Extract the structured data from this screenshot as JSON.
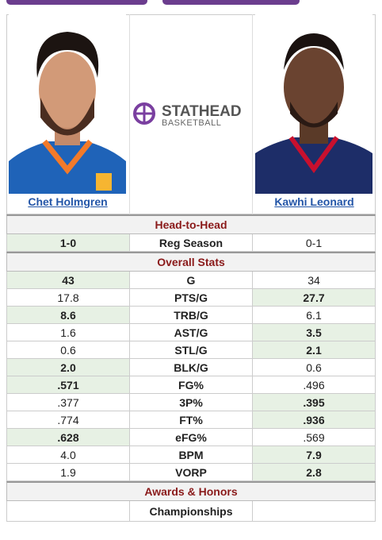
{
  "header": {
    "players": [
      {
        "name": "Chet Holmgren"
      },
      {
        "name": "Kawhi Leonard"
      }
    ],
    "logo": {
      "brand": "STATHEAD",
      "sub": "BASKETBALL"
    }
  },
  "sections": [
    {
      "title": "Head-to-Head",
      "rows": [
        {
          "left": "1-0",
          "label": "Reg Season",
          "right": "0-1",
          "leader": "left"
        }
      ]
    },
    {
      "title": "Overall Stats",
      "rows": [
        {
          "left": "43",
          "label": "G",
          "right": "34",
          "leader": "left"
        },
        {
          "left": "17.8",
          "label": "PTS/G",
          "right": "27.7",
          "leader": "right"
        },
        {
          "left": "8.6",
          "label": "TRB/G",
          "right": "6.1",
          "leader": "left"
        },
        {
          "left": "1.6",
          "label": "AST/G",
          "right": "3.5",
          "leader": "right"
        },
        {
          "left": "0.6",
          "label": "STL/G",
          "right": "2.1",
          "leader": "right"
        },
        {
          "left": "2.0",
          "label": "BLK/G",
          "right": "0.6",
          "leader": "left"
        },
        {
          "left": ".571",
          "label": "FG%",
          "right": ".496",
          "leader": "left"
        },
        {
          "left": ".377",
          "label": "3P%",
          "right": ".395",
          "leader": "right"
        },
        {
          "left": ".774",
          "label": "FT%",
          "right": ".936",
          "leader": "right"
        },
        {
          "left": ".628",
          "label": "eFG%",
          "right": ".569",
          "leader": "left"
        },
        {
          "left": "4.0",
          "label": "BPM",
          "right": "7.9",
          "leader": "right"
        },
        {
          "left": "1.9",
          "label": "VORP",
          "right": "2.8",
          "leader": "right"
        }
      ]
    },
    {
      "title": "Awards & Honors",
      "rows": [
        {
          "label": "Championships"
        }
      ]
    }
  ]
}
